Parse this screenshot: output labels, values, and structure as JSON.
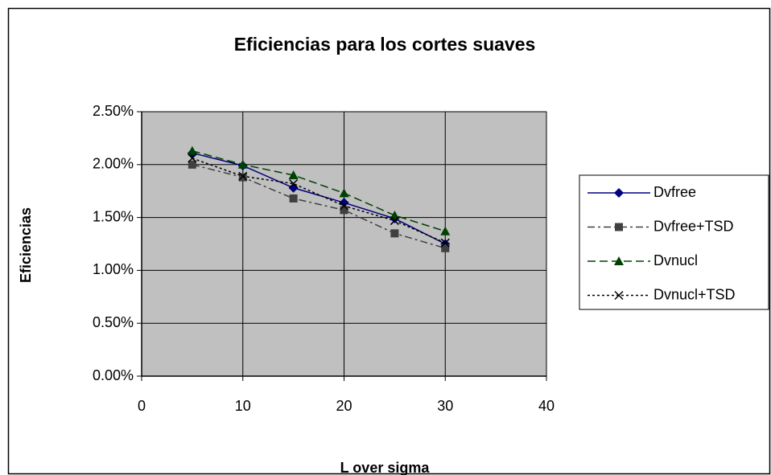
{
  "chart_data": {
    "type": "line",
    "title": "Eficiencias para los cortes suaves",
    "x_label": "L over sigma",
    "y_label": "Eficiencias",
    "x": [
      5,
      10,
      15,
      20,
      25,
      30
    ],
    "xlim": [
      0,
      40
    ],
    "xticks": [
      0,
      10,
      20,
      30,
      40
    ],
    "ylim": [
      0,
      2.5
    ],
    "yticks": [
      {
        "value": 0,
        "label": "0.00%"
      },
      {
        "value": 0.5,
        "label": "0.50%"
      },
      {
        "value": 1,
        "label": "1.00%"
      },
      {
        "value": 1.5,
        "label": "1.50%"
      },
      {
        "value": 2,
        "label": "2.00%"
      },
      {
        "value": 2.5,
        "label": "2.50%"
      }
    ],
    "grid": true,
    "legend": "right",
    "plot_background": "#c0c0c0",
    "series": [
      {
        "name": "Dvfree",
        "color": "#000080",
        "line_style": "solid",
        "marker": "diamond",
        "values": [
          2.11,
          1.99,
          1.78,
          1.64,
          1.49,
          1.25
        ]
      },
      {
        "name": "Dvfree+TSD",
        "color": "#404040",
        "line_style": "dashdot",
        "marker": "square",
        "values": [
          2.0,
          1.88,
          1.68,
          1.57,
          1.35,
          1.21
        ]
      },
      {
        "name": "Dvnucl",
        "color": "#004000",
        "line_style": "dashed",
        "marker": "triangle",
        "values": [
          2.13,
          2.0,
          1.9,
          1.73,
          1.52,
          1.37
        ]
      },
      {
        "name": "Dvnucl+TSD",
        "color": "#000000",
        "line_style": "dotted",
        "marker": "x",
        "values": [
          2.06,
          1.89,
          1.82,
          1.61,
          1.47,
          1.26
        ]
      }
    ]
  }
}
